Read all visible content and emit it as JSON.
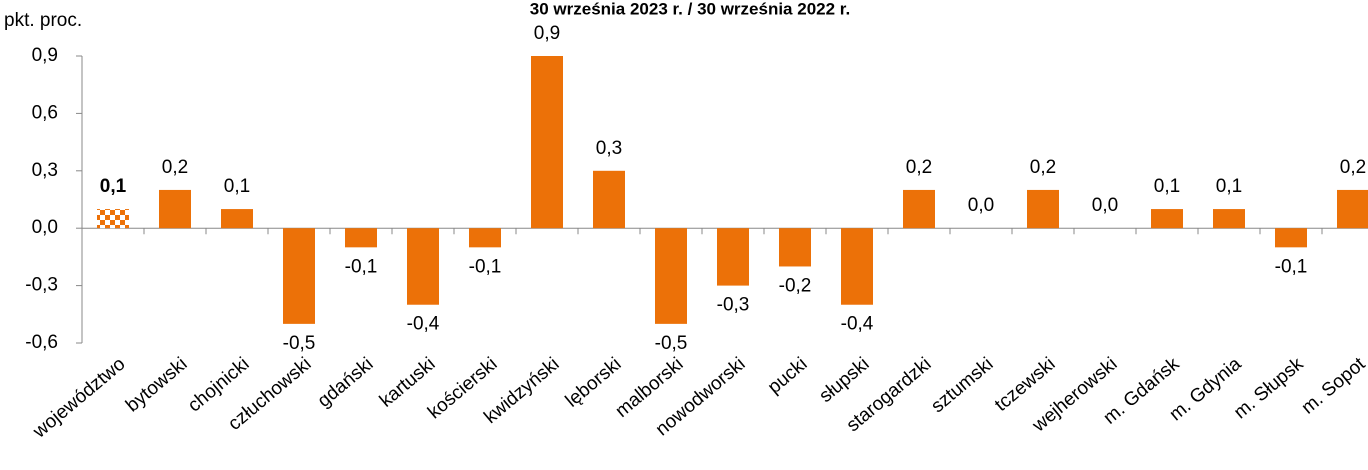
{
  "chart_data": {
    "type": "bar",
    "title": "30 września 2023 r. / 30 września 2022 r.",
    "y_label": "pkt. proc.",
    "categories": [
      "województwo",
      "bytowski",
      "chojnicki",
      "człuchowski",
      "gdański",
      "kartuski",
      "kościerski",
      "kwidzyński",
      "lęborski",
      "malborski",
      "nowodworski",
      "pucki",
      "słupski",
      "starogardzki",
      "sztumski",
      "tczewski",
      "wejherowski",
      "m. Gdańsk",
      "m. Gdynia",
      "m. Słupsk",
      "m. Sopot"
    ],
    "values": [
      0.1,
      0.2,
      0.1,
      -0.5,
      -0.1,
      -0.4,
      -0.1,
      0.9,
      0.3,
      -0.5,
      -0.3,
      -0.2,
      -0.4,
      0.2,
      0.0,
      0.2,
      0.0,
      0.1,
      0.1,
      -0.1,
      0.2
    ],
    "value_labels": [
      "0,1",
      "0,2",
      "0,1",
      "-0,5",
      "-0,1",
      "-0,4",
      "-0,1",
      "0,9",
      "0,3",
      "-0,5",
      "-0,3",
      "-0,2",
      "-0,4",
      "0,2",
      "0,0",
      "0,2",
      "0,0",
      "0,1",
      "0,1",
      "-0,1",
      "0,2"
    ],
    "color": "#ec7108",
    "highlight_index": 0,
    "ylim": [
      -0.6,
      0.9
    ],
    "yticks": [
      {
        "value": -0.6,
        "label": "-0,6"
      },
      {
        "value": -0.3,
        "label": "-0,3"
      },
      {
        "value": 0,
        "label": "0,0"
      },
      {
        "value": 0.3,
        "label": "0,3"
      },
      {
        "value": 0.6,
        "label": "0,6"
      },
      {
        "value": 0.9,
        "label": "0,9"
      }
    ]
  }
}
